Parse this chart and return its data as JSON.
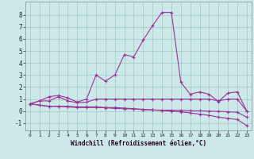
{
  "xlabel": "Windchill (Refroidissement éolien,°C)",
  "bg_color": "#cce8e8",
  "grid_color": "#aacccc",
  "line_color": "#993399",
  "x_ticks": [
    0,
    1,
    2,
    3,
    4,
    5,
    6,
    7,
    8,
    9,
    10,
    11,
    12,
    13,
    14,
    15,
    16,
    17,
    18,
    19,
    20,
    21,
    22,
    23
  ],
  "y_ticks": [
    -1,
    0,
    1,
    2,
    3,
    4,
    5,
    6,
    7,
    8
  ],
  "xlim": [
    -0.5,
    23.5
  ],
  "ylim": [
    -1.6,
    9.1
  ],
  "series": [
    [
      0.6,
      0.85,
      1.2,
      1.3,
      1.1,
      0.75,
      1.0,
      3.0,
      2.5,
      3.0,
      4.7,
      4.5,
      5.9,
      7.1,
      8.2,
      8.2,
      2.4,
      1.4,
      1.6,
      1.4,
      0.8,
      1.5,
      1.6,
      0.0
    ],
    [
      0.6,
      0.85,
      0.85,
      1.2,
      0.85,
      0.7,
      0.75,
      1.0,
      1.0,
      1.0,
      1.0,
      1.0,
      1.0,
      1.0,
      1.0,
      1.0,
      1.0,
      1.0,
      1.0,
      1.0,
      0.85,
      1.0,
      1.0,
      0.0
    ],
    [
      0.6,
      0.5,
      0.4,
      0.4,
      0.4,
      0.35,
      0.35,
      0.35,
      0.3,
      0.3,
      0.25,
      0.2,
      0.15,
      0.1,
      0.05,
      0.0,
      -0.05,
      -0.15,
      -0.25,
      -0.35,
      -0.5,
      -0.6,
      -0.7,
      -1.2
    ],
    [
      0.6,
      0.5,
      0.4,
      0.4,
      0.35,
      0.3,
      0.3,
      0.3,
      0.28,
      0.22,
      0.2,
      0.18,
      0.12,
      0.1,
      0.08,
      0.08,
      0.06,
      0.03,
      0.02,
      0.0,
      -0.02,
      -0.05,
      -0.1,
      -0.5
    ]
  ],
  "linestyles": [
    "-",
    "-",
    "-",
    "-"
  ]
}
